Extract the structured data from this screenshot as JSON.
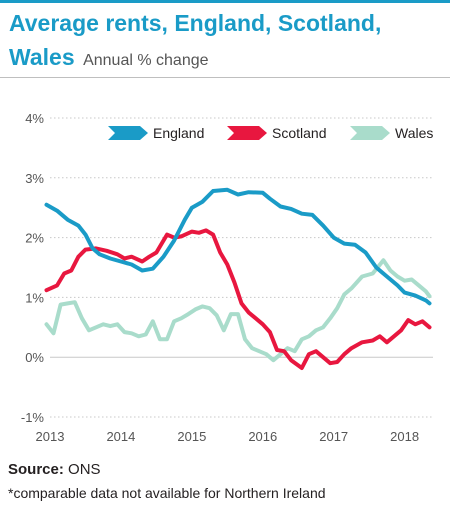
{
  "header": {
    "title": "Average rents, England, Scotland, Wales",
    "subtitle": "Annual % change"
  },
  "footer": {
    "source_label": "Source:",
    "source_value": "ONS",
    "footnote": "*comparable data not available for Northern Ireland"
  },
  "colors": {
    "title": "#1a9bc7",
    "England": "#1a9bc7",
    "Scotland": "#e8173f",
    "Wales": "#a9dccb",
    "grid": "#c8c8c8",
    "axis_text": "#555555"
  },
  "chart_data": {
    "type": "line",
    "title": "Average rents, England, Scotland, Wales",
    "subtitle": "Annual % change",
    "xlabel": "",
    "ylabel": "",
    "x_ticks": [
      "2013",
      "2014",
      "2015",
      "2016",
      "2017",
      "2018"
    ],
    "xlim": [
      2013,
      2018.4
    ],
    "ylim": [
      -1,
      4
    ],
    "y_ticks": [
      -1,
      0,
      1,
      2,
      3,
      4
    ],
    "y_tick_labels": [
      "-1%",
      "0%",
      "1%",
      "2%",
      "3%",
      "4%"
    ],
    "grid": "horizontal",
    "legend": "top",
    "series": [
      {
        "name": "England",
        "points": [
          [
            2012.95,
            2.55
          ],
          [
            2013.1,
            2.45
          ],
          [
            2013.25,
            2.3
          ],
          [
            2013.4,
            2.2
          ],
          [
            2013.5,
            2.05
          ],
          [
            2013.6,
            1.82
          ],
          [
            2013.7,
            1.72
          ],
          [
            2013.85,
            1.65
          ],
          [
            2014.0,
            1.6
          ],
          [
            2014.15,
            1.55
          ],
          [
            2014.3,
            1.45
          ],
          [
            2014.45,
            1.48
          ],
          [
            2014.6,
            1.68
          ],
          [
            2014.75,
            1.95
          ],
          [
            2014.9,
            2.3
          ],
          [
            2015.0,
            2.5
          ],
          [
            2015.15,
            2.6
          ],
          [
            2015.3,
            2.78
          ],
          [
            2015.5,
            2.8
          ],
          [
            2015.65,
            2.72
          ],
          [
            2015.8,
            2.76
          ],
          [
            2016.0,
            2.75
          ],
          [
            2016.1,
            2.65
          ],
          [
            2016.25,
            2.52
          ],
          [
            2016.4,
            2.48
          ],
          [
            2016.55,
            2.4
          ],
          [
            2016.7,
            2.38
          ],
          [
            2016.85,
            2.2
          ],
          [
            2017.0,
            2.0
          ],
          [
            2017.15,
            1.9
          ],
          [
            2017.3,
            1.88
          ],
          [
            2017.45,
            1.75
          ],
          [
            2017.6,
            1.5
          ],
          [
            2017.75,
            1.35
          ],
          [
            2017.9,
            1.2
          ],
          [
            2018.0,
            1.08
          ],
          [
            2018.15,
            1.03
          ],
          [
            2018.3,
            0.95
          ],
          [
            2018.35,
            0.9
          ]
        ]
      },
      {
        "name": "Scotland",
        "points": [
          [
            2012.95,
            1.12
          ],
          [
            2013.1,
            1.2
          ],
          [
            2013.2,
            1.4
          ],
          [
            2013.3,
            1.45
          ],
          [
            2013.4,
            1.68
          ],
          [
            2013.5,
            1.8
          ],
          [
            2013.65,
            1.82
          ],
          [
            2013.8,
            1.78
          ],
          [
            2013.95,
            1.72
          ],
          [
            2014.05,
            1.65
          ],
          [
            2014.15,
            1.68
          ],
          [
            2014.3,
            1.6
          ],
          [
            2014.4,
            1.68
          ],
          [
            2014.5,
            1.75
          ],
          [
            2014.65,
            2.05
          ],
          [
            2014.75,
            2.0
          ],
          [
            2014.85,
            2.02
          ],
          [
            2015.0,
            2.1
          ],
          [
            2015.1,
            2.08
          ],
          [
            2015.2,
            2.12
          ],
          [
            2015.3,
            2.05
          ],
          [
            2015.4,
            1.75
          ],
          [
            2015.5,
            1.55
          ],
          [
            2015.6,
            1.25
          ],
          [
            2015.7,
            0.9
          ],
          [
            2015.8,
            0.75
          ],
          [
            2015.9,
            0.65
          ],
          [
            2016.0,
            0.55
          ],
          [
            2016.1,
            0.42
          ],
          [
            2016.2,
            0.12
          ],
          [
            2016.3,
            0.1
          ],
          [
            2016.4,
            -0.05
          ],
          [
            2016.55,
            -0.18
          ],
          [
            2016.65,
            0.05
          ],
          [
            2016.75,
            0.1
          ],
          [
            2016.85,
            0.0
          ],
          [
            2016.95,
            -0.1
          ],
          [
            2017.05,
            -0.08
          ],
          [
            2017.15,
            0.05
          ],
          [
            2017.25,
            0.15
          ],
          [
            2017.4,
            0.25
          ],
          [
            2017.55,
            0.28
          ],
          [
            2017.65,
            0.35
          ],
          [
            2017.75,
            0.25
          ],
          [
            2017.85,
            0.35
          ],
          [
            2017.95,
            0.45
          ],
          [
            2018.05,
            0.62
          ],
          [
            2018.15,
            0.55
          ],
          [
            2018.25,
            0.6
          ],
          [
            2018.35,
            0.5
          ]
        ]
      },
      {
        "name": "Wales",
        "points": [
          [
            2012.95,
            0.55
          ],
          [
            2013.05,
            0.4
          ],
          [
            2013.15,
            0.88
          ],
          [
            2013.25,
            0.9
          ],
          [
            2013.35,
            0.92
          ],
          [
            2013.45,
            0.65
          ],
          [
            2013.55,
            0.45
          ],
          [
            2013.65,
            0.5
          ],
          [
            2013.75,
            0.55
          ],
          [
            2013.85,
            0.52
          ],
          [
            2013.95,
            0.55
          ],
          [
            2014.05,
            0.42
          ],
          [
            2014.15,
            0.4
          ],
          [
            2014.25,
            0.35
          ],
          [
            2014.35,
            0.38
          ],
          [
            2014.45,
            0.6
          ],
          [
            2014.55,
            0.3
          ],
          [
            2014.65,
            0.3
          ],
          [
            2014.75,
            0.6
          ],
          [
            2014.85,
            0.65
          ],
          [
            2014.95,
            0.72
          ],
          [
            2015.05,
            0.8
          ],
          [
            2015.15,
            0.85
          ],
          [
            2015.25,
            0.82
          ],
          [
            2015.35,
            0.7
          ],
          [
            2015.45,
            0.45
          ],
          [
            2015.55,
            0.72
          ],
          [
            2015.65,
            0.72
          ],
          [
            2015.75,
            0.3
          ],
          [
            2015.85,
            0.15
          ],
          [
            2015.95,
            0.1
          ],
          [
            2016.05,
            0.05
          ],
          [
            2016.15,
            -0.05
          ],
          [
            2016.25,
            0.05
          ],
          [
            2016.35,
            0.15
          ],
          [
            2016.45,
            0.1
          ],
          [
            2016.55,
            0.3
          ],
          [
            2016.65,
            0.35
          ],
          [
            2016.75,
            0.45
          ],
          [
            2016.85,
            0.5
          ],
          [
            2016.95,
            0.65
          ],
          [
            2017.05,
            0.82
          ],
          [
            2017.15,
            1.05
          ],
          [
            2017.25,
            1.15
          ],
          [
            2017.4,
            1.35
          ],
          [
            2017.55,
            1.4
          ],
          [
            2017.7,
            1.62
          ],
          [
            2017.8,
            1.45
          ],
          [
            2017.9,
            1.35
          ],
          [
            2018.0,
            1.28
          ],
          [
            2018.1,
            1.3
          ],
          [
            2018.2,
            1.2
          ],
          [
            2018.3,
            1.1
          ],
          [
            2018.35,
            1.02
          ]
        ]
      }
    ]
  }
}
